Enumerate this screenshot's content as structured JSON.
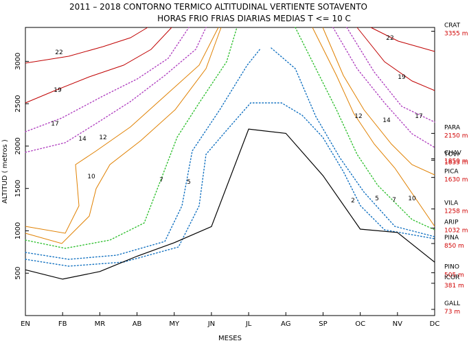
{
  "chart_data": {
    "type": "contour",
    "title": "2011 – 2018 CONTORNO TERMICO ALTITUDINAL VERTIENTE SOTAVENTO",
    "subtitle": "HORAS FRIO FRIAS DIARIAS MEDIAS T <= 10 C",
    "xlabel": "MESES",
    "ylabel": "ALTITUD ( metros )",
    "categories": [
      "EN",
      "FB",
      "MR",
      "AB",
      "MY",
      "JN",
      "JL",
      "AG",
      "SP",
      "OC",
      "NV",
      "DC"
    ],
    "yticks": [
      500,
      1000,
      1500,
      2000,
      2500,
      3000
    ],
    "ylim": [
      0,
      3400
    ],
    "contour_levels": [
      {
        "value": 22,
        "color": "#c00000",
        "style": "solid"
      },
      {
        "value": 19,
        "color": "#c00000",
        "style": "solid"
      },
      {
        "value": 17,
        "color": "#b040c0",
        "style": "dotted"
      },
      {
        "value": 14,
        "color": "#b040c0",
        "style": "dotted"
      },
      {
        "value": 12,
        "color": "#e08000",
        "style": "solid"
      },
      {
        "value": 10,
        "color": "#e08000",
        "style": "solid"
      },
      {
        "value": 7,
        "color": "#30c030",
        "style": "dotted"
      },
      {
        "value": 5,
        "color": "#1070c0",
        "style": "dotted"
      },
      {
        "value": 2,
        "color": "#1070c0",
        "style": "dotted"
      }
    ],
    "terrain_profile": [
      {
        "month": "EN",
        "altitude": 540
      },
      {
        "month": "FB",
        "altitude": 430
      },
      {
        "month": "MR",
        "altitude": 520
      },
      {
        "month": "AB",
        "altitude": 700
      },
      {
        "month": "MY",
        "altitude": 860
      },
      {
        "month": "JN",
        "altitude": 1050
      },
      {
        "month": "JL",
        "altitude": 2200
      },
      {
        "month": "AG",
        "altitude": 2150
      },
      {
        "month": "SP",
        "altitude": 1650
      },
      {
        "month": "OC",
        "altitude": 1020
      },
      {
        "month": "NV",
        "altitude": 980
      },
      {
        "month": "DC",
        "altitude": 630
      }
    ],
    "stations": [
      {
        "name": "CRAT",
        "altitude_label": "3355 m",
        "altitude": 3355
      },
      {
        "name": "PARA",
        "altitude_label": "2150 m",
        "altitude": 2150
      },
      {
        "name": "CHAV",
        "altitude_label": "1850 m",
        "altitude": 1850
      },
      {
        "name": "TOVI",
        "altitude_label": "1833 m",
        "altitude": 1833
      },
      {
        "name": "PICA",
        "altitude_label": "1630 m",
        "altitude": 1630
      },
      {
        "name": "VILA",
        "altitude_label": "1258 m",
        "altitude": 1258
      },
      {
        "name": "ARIP",
        "altitude_label": "1032 m",
        "altitude": 1032
      },
      {
        "name": "PINA",
        "altitude_label": "850 m",
        "altitude": 850
      },
      {
        "name": "PINO",
        "altitude_label": "505 m",
        "altitude": 505
      },
      {
        "name": "ICOR",
        "altitude_label": "381 m",
        "altitude": 381
      },
      {
        "name": "GALL",
        "altitude_label": "73 m",
        "altitude": 73
      }
    ],
    "grid": false
  }
}
